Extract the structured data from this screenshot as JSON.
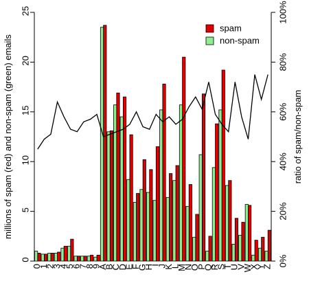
{
  "chart_data": {
    "type": "bar",
    "ylabel": "millions of spam (red) and non-spam (green) emails",
    "y2label": "ratio of spam/non-spam",
    "categories": [
      "0",
      "1",
      "2",
      "3",
      "4",
      "5",
      "6",
      "7",
      "8",
      "9",
      "A",
      "B",
      "C",
      "D",
      "E",
      "F",
      "G",
      "H",
      "I",
      "J",
      "K",
      "L",
      "M",
      "N",
      "O",
      "P",
      "Q",
      "R",
      "S",
      "T",
      "U",
      "V",
      "W",
      "X",
      "Y",
      "Z"
    ],
    "series": [
      {
        "name": "spam",
        "color": "#e00000",
        "values": [
          0.8,
          0.7,
          0.8,
          0.9,
          1.5,
          2.2,
          0.5,
          0.5,
          0.6,
          0.6,
          23.7,
          13.1,
          16.9,
          16.5,
          12.7,
          6.8,
          10.2,
          9.2,
          11.5,
          17.8,
          8.8,
          9.6,
          20.5,
          7.7,
          4.7,
          16.8,
          2.5,
          13.8,
          19.2,
          8.1,
          4.3,
          3.9,
          5.6,
          2.1,
          2.4,
          3.1
        ]
      },
      {
        "name": "non-spam",
        "color": "#90ee90",
        "values": [
          1.0,
          0.7,
          0.8,
          0.8,
          1.3,
          1.5,
          0.5,
          0.5,
          0.5,
          0.4,
          23.5,
          13.0,
          15.7,
          14.5,
          8.2,
          5.9,
          7.2,
          6.9,
          6.1,
          15.2,
          6.4,
          8.1,
          15.7,
          5.5,
          2.4,
          10.7,
          1.0,
          9.4,
          15.2,
          7.6,
          1.7,
          2.6,
          5.7,
          0.6,
          1.3,
          1.0
        ]
      },
      {
        "type": "line",
        "axis": "y2",
        "color": "#000000",
        "values": [
          45,
          49,
          51,
          64,
          58,
          53,
          52,
          56,
          57,
          59,
          50,
          51,
          52,
          53,
          55,
          60,
          54,
          53,
          59,
          56,
          58,
          55,
          57,
          62,
          66,
          61,
          72,
          59,
          55,
          52,
          72,
          58,
          49,
          75,
          65,
          75
        ]
      }
    ],
    "ylim": [
      0,
      25
    ],
    "yticks": [
      0,
      5,
      10,
      15,
      20,
      25
    ],
    "y2lim": [
      0,
      100
    ],
    "y2ticks": [
      {
        "value": 0,
        "label": "0%"
      },
      {
        "value": 20,
        "label": "20%"
      },
      {
        "value": 40,
        "label": "40%"
      },
      {
        "value": 60,
        "label": "60%"
      },
      {
        "value": 80,
        "label": "80%"
      },
      {
        "value": 100,
        "label": "100%"
      }
    ],
    "legend": "top-right"
  }
}
